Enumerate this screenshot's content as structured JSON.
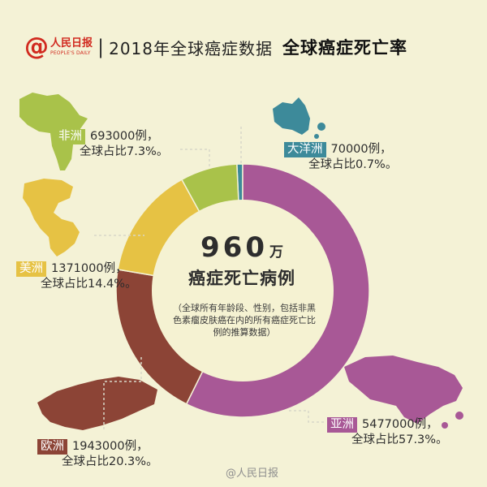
{
  "header": {
    "logo_text": "人民日报",
    "logo_en": "PEOPLE'S DAILY",
    "divider": "|",
    "title": "2018年全球癌症数据",
    "subtitle": "全球癌症死亡率"
  },
  "center": {
    "number": "960",
    "unit": "万",
    "label": "癌症死亡病例",
    "note": "（全球所有年龄段、性别，包括非黑色素瘤皮肤癌在内的所有癌症死亡比例的推算数据）"
  },
  "chart_data": {
    "type": "pie",
    "title": "全球癌症死亡率",
    "total_label": "960万",
    "slices": [
      {
        "region": "亚洲",
        "cases": 5477000,
        "cases_text": "5477000例，",
        "percent": 57.3,
        "percent_text": "全球占比57.3%。",
        "color": "#a85896"
      },
      {
        "region": "欧洲",
        "cases": 1943000,
        "cases_text": "1943000例，",
        "percent": 20.3,
        "percent_text": "全球占比20.3%。",
        "color": "#8c4436"
      },
      {
        "region": "美洲",
        "cases": 1371000,
        "cases_text": "1371000例，",
        "percent": 14.4,
        "percent_text": "全球占比14.4%。",
        "color": "#e6c244"
      },
      {
        "region": "非洲",
        "cases": 693000,
        "cases_text": "693000例，",
        "percent": 7.3,
        "percent_text": "全球占比7.3%。",
        "color": "#a9c24a"
      },
      {
        "region": "大洋洲",
        "cases": 70000,
        "cases_text": "70000例，",
        "percent": 0.7,
        "percent_text": "全球占比0.7%。",
        "color": "#3d8a9a"
      }
    ]
  },
  "watermark": "@人民日报"
}
